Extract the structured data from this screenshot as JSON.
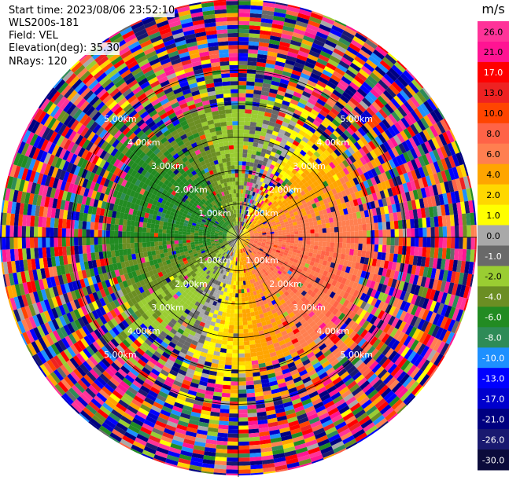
{
  "header": {
    "start_time": "Start time: 2023/08/06 23:52:10",
    "instrument": "WLS200s-181",
    "field": "Field: VEL",
    "elevation": "Elevation(deg): 35.30",
    "nrays": "NRays: 120"
  },
  "colorbar": {
    "unit": "m/s",
    "ticks": [
      "26.0",
      "21.0",
      "17.0",
      "13.0",
      "10.0",
      "8.0",
      "6.0",
      "4.0",
      "2.0",
      "1.0",
      "0.0",
      "-1.0",
      "-2.0",
      "-4.0",
      "-6.0",
      "-8.0",
      "-10.0",
      "-13.0",
      "-17.0",
      "-21.0",
      "-26.0",
      "-30.0"
    ],
    "colors": [
      "#ff3399",
      "#ff1493",
      "#ff0000",
      "#ee2222",
      "#ff4500",
      "#ff6347",
      "#ff7f50",
      "#ffa500",
      "#ffd700",
      "#ffff00",
      "#a9a9a9",
      "#696969",
      "#9acd32",
      "#6b8e23",
      "#228b22",
      "#2e8b57",
      "#1e90ff",
      "#0000ff",
      "#0000cd",
      "#000080",
      "#191970",
      "#0b0b3b"
    ]
  },
  "chart_data": {
    "type": "heatmap",
    "subtype": "ppi-radial-velocity",
    "field": "VEL",
    "units": "m/s",
    "nrays": 120,
    "elevation_deg": 35.3,
    "range_rings_km": [
      1.0,
      2.0,
      3.0,
      4.0,
      5.0
    ],
    "ring_labels": [
      "1.00km",
      "2.00km",
      "3.00km",
      "4.00km",
      "5.00km"
    ],
    "color_range": [
      -30.0,
      26.0
    ],
    "max_range_km": 7.1,
    "pattern": {
      "positive_sector_deg": [
        20,
        200
      ],
      "negative_sector_deg": [
        200,
        380
      ],
      "clean_range_km": 3.8,
      "noisy_range_km": 7.1
    }
  }
}
